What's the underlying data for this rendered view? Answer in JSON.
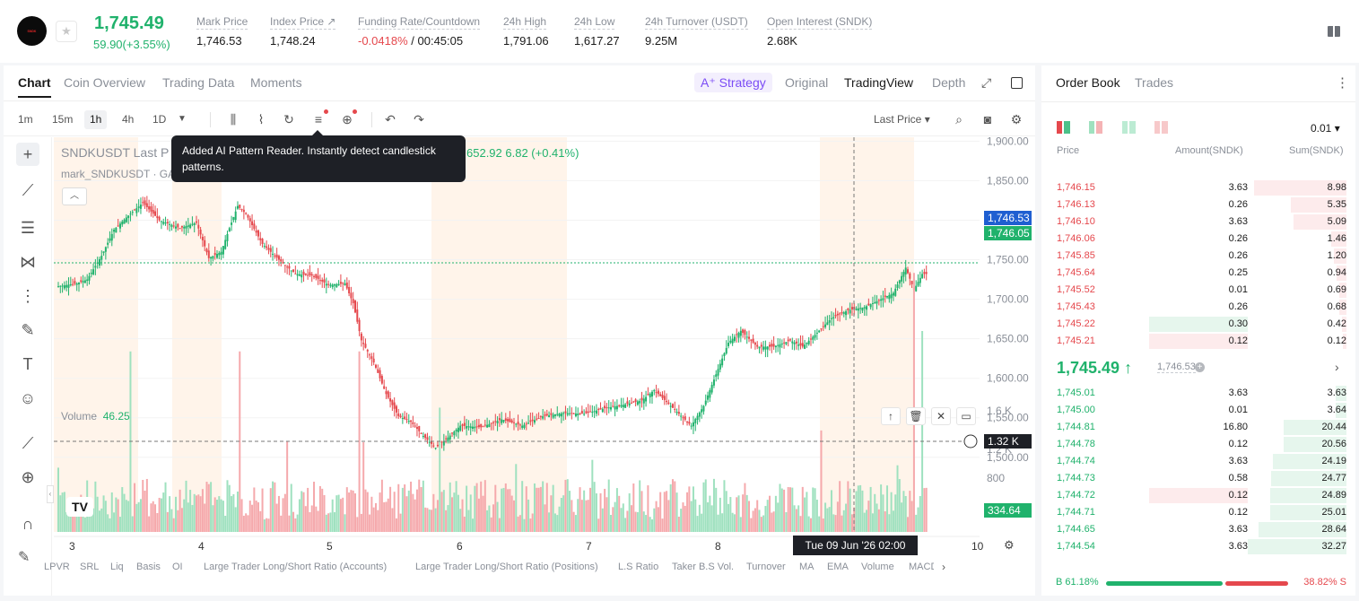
{
  "ticker": {
    "logo_text": "SNDK",
    "last_price": "1,745.49",
    "change": "59.90(+3.55%)",
    "stats": [
      {
        "label": "Mark Price",
        "value": "1,746.53"
      },
      {
        "label": "Index Price ↗",
        "value": "1,748.24"
      },
      {
        "label": "Funding Rate/Countdown",
        "value_neg": "-0.0418%",
        "value": " / 00:45:05"
      },
      {
        "label": "24h High",
        "value": "1,791.06"
      },
      {
        "label": "24h Low",
        "value": "1,617.27"
      },
      {
        "label": "24h Turnover (USDT)",
        "value": "9.25M"
      },
      {
        "label": "Open Interest (SNDK)",
        "value": "2.68K"
      }
    ]
  },
  "chart_tabs": [
    "Chart",
    "Coin Overview",
    "Trading Data",
    "Moments"
  ],
  "strategy_label": "A⁺ Strategy",
  "view_tabs": [
    "Original",
    "TradingView",
    "Depth"
  ],
  "timeframes": [
    "1m",
    "15m",
    "1h",
    "4h",
    "1D"
  ],
  "active_timeframe": "1h",
  "last_price_select": "Last Price",
  "tooltip": "Added AI Pattern Reader. Instantly detect candlestick patterns.",
  "legend": {
    "title": "SNDKUSDT Last P",
    "ohlc": "652.92  6.82 (+0.41%)",
    "mark": "mark_SNDKUSDT · GA",
    "volume_label": "Volume",
    "volume_value": "46.25"
  },
  "price_axis": {
    "ticks": [
      "1,900.00",
      "1,850.00",
      "1,800.00",
      "1,750.00",
      "1,700.00",
      "1,650.00",
      "1,600.00",
      "1,550.00",
      "1,500.00"
    ],
    "badge_mark": "1,746.53",
    "badge_last": "1,746.05",
    "volume_ticks": [
      "1.6 K",
      "1.2 K",
      "800"
    ],
    "badge_cross": "1.32 K",
    "badge_volume": "334.64"
  },
  "time_axis": {
    "ticks": [
      "3",
      "4",
      "5",
      "6",
      "7",
      "8",
      "10"
    ],
    "crosshair_label": "Tue 09 Jun '26   02:00"
  },
  "indicators": [
    "LPVR",
    "SRL",
    "Liq",
    "Basis",
    "OI",
    "Large Trader Long/Short Ratio (Accounts)",
    "Large Trader Long/Short Ratio (Positions)",
    "L.S Ratio",
    "Taker B.S Vol.",
    "Turnover",
    "MA",
    "EMA",
    "Volume",
    "MACD"
  ],
  "order_book": {
    "tabs": [
      "Order Book",
      "Trades"
    ],
    "precision": "0.01",
    "headers": {
      "price": "Price",
      "amount": "Amount(SNDK)",
      "sum": "Sum(SNDK)"
    },
    "asks": [
      {
        "price": "1,746.15",
        "amount": "3.63",
        "sum": "8.98"
      },
      {
        "price": "1,746.13",
        "amount": "0.26",
        "sum": "5.35"
      },
      {
        "price": "1,746.10",
        "amount": "3.63",
        "sum": "5.09"
      },
      {
        "price": "1,746.06",
        "amount": "0.26",
        "sum": "1.46"
      },
      {
        "price": "1,745.85",
        "amount": "0.26",
        "sum": "1.20"
      },
      {
        "price": "1,745.64",
        "amount": "0.25",
        "sum": "0.94"
      },
      {
        "price": "1,745.52",
        "amount": "0.01",
        "sum": "0.69"
      },
      {
        "price": "1,745.43",
        "amount": "0.26",
        "sum": "0.68"
      },
      {
        "price": "1,745.22",
        "amount": "0.30",
        "sum": "0.42"
      },
      {
        "price": "1,745.21",
        "amount": "0.12",
        "sum": "0.12"
      }
    ],
    "mid_price": "1,745.49 ↑",
    "mid_mark": "1,746.53",
    "bids": [
      {
        "price": "1,745.01",
        "amount": "3.63",
        "sum": "3.63"
      },
      {
        "price": "1,745.00",
        "amount": "0.01",
        "sum": "3.64"
      },
      {
        "price": "1,744.81",
        "amount": "16.80",
        "sum": "20.44"
      },
      {
        "price": "1,744.78",
        "amount": "0.12",
        "sum": "20.56"
      },
      {
        "price": "1,744.74",
        "amount": "3.63",
        "sum": "24.19"
      },
      {
        "price": "1,744.73",
        "amount": "0.58",
        "sum": "24.77"
      },
      {
        "price": "1,744.72",
        "amount": "0.12",
        "sum": "24.89"
      },
      {
        "price": "1,744.71",
        "amount": "0.12",
        "sum": "25.01"
      },
      {
        "price": "1,744.65",
        "amount": "3.63",
        "sum": "28.64"
      },
      {
        "price": "1,744.54",
        "amount": "3.63",
        "sum": "32.27"
      }
    ],
    "buy_ratio": "B 61.18%",
    "sell_ratio": "38.82% S"
  },
  "colors": {
    "up": "#20b26c",
    "down": "#e5484d",
    "accent": "#7b4cf5"
  }
}
